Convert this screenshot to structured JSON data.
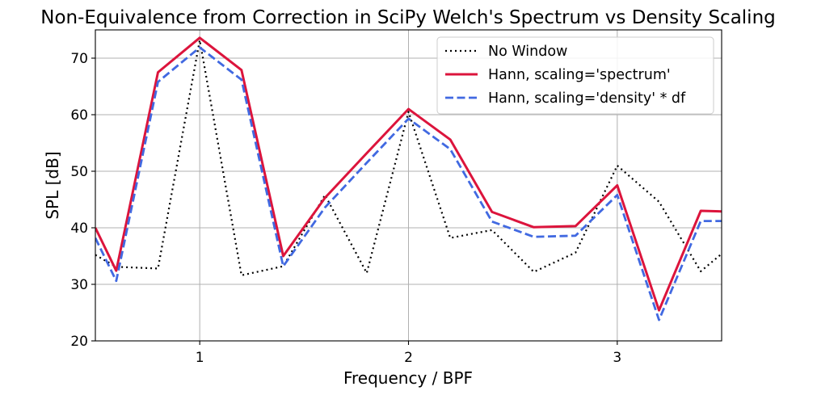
{
  "chart_data": {
    "type": "line",
    "title": "Non-Equivalence from Correction in SciPy Welch's Spectrum vs Density Scaling",
    "xlabel": "Frequency / BPF",
    "ylabel": "SPL [dB]",
    "xlim": [
      0.5,
      3.5
    ],
    "ylim": [
      20,
      75
    ],
    "xticks": [
      1,
      2,
      3
    ],
    "yticks": [
      20,
      30,
      40,
      50,
      60,
      70
    ],
    "grid": true,
    "legend_position": "top-right",
    "x": [
      0.5,
      0.6,
      0.8,
      1.0,
      1.2,
      1.4,
      1.6,
      1.8,
      2.0,
      2.2,
      2.4,
      2.6,
      2.8,
      3.0,
      3.2,
      3.4,
      3.5
    ],
    "series": [
      {
        "name": "No Window",
        "color": "#000000",
        "style": "dotted",
        "values": [
          35.2,
          33.1,
          32.8,
          73.2,
          31.6,
          33.2,
          45.8,
          32.0,
          60.5,
          38.2,
          39.6,
          32.2,
          35.6,
          51.0,
          44.6,
          32.3,
          35.4
        ]
      },
      {
        "name": "Hann, scaling='spectrum'",
        "color": "#dc143c",
        "style": "solid",
        "values": [
          40.0,
          32.4,
          67.5,
          73.6,
          67.9,
          35.0,
          45.3,
          53.2,
          61.0,
          55.6,
          42.8,
          40.1,
          40.3,
          47.5,
          25.4,
          43.0,
          42.9
        ]
      },
      {
        "name": "Hann, scaling='density' * df",
        "color": "#4169e1",
        "style": "dashed",
        "values": [
          38.2,
          30.6,
          65.8,
          71.9,
          66.2,
          33.2,
          43.6,
          51.5,
          59.3,
          53.9,
          41.1,
          38.4,
          38.6,
          45.8,
          23.7,
          41.2,
          41.2
        ]
      }
    ]
  }
}
